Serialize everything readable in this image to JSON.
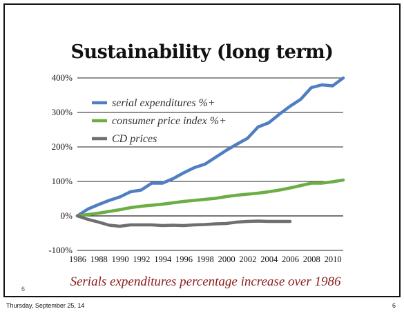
{
  "slide": {
    "title": "Sustainability (long term)",
    "caption": "Serials expenditures percentage increase over 1986",
    "slide_number_small": "6"
  },
  "footer": {
    "date": "Thursday, September 25, 14",
    "page_number": "6"
  },
  "chart_data": {
    "type": "line",
    "title": "",
    "xlabel": "",
    "ylabel": "",
    "grid": "horizontal",
    "legend_placement": "top-left",
    "xlim": [
      1986,
      2011
    ],
    "ylim": [
      -100,
      400
    ],
    "x_ticks": [
      "1986",
      "1988",
      "1990",
      "1992",
      "1994",
      "1996",
      "1998",
      "2000",
      "2002",
      "2004",
      "2006",
      "2008",
      "2010"
    ],
    "y_ticks": [
      {
        "value": 400,
        "label": "400%"
      },
      {
        "value": 300,
        "label": "300%"
      },
      {
        "value": 200,
        "label": "200%"
      },
      {
        "value": 100,
        "label": "100%"
      },
      {
        "value": 0,
        "label": "0%"
      },
      {
        "value": -100,
        "label": "-100%"
      }
    ],
    "series": [
      {
        "name": "serial expenditures %+",
        "color": "#4f7ec1",
        "x": [
          1986,
          1987,
          1988,
          1989,
          1990,
          1991,
          1992,
          1993,
          1994,
          1995,
          1996,
          1997,
          1998,
          1999,
          2000,
          2001,
          2002,
          2003,
          2004,
          2005,
          2006,
          2007,
          2008,
          2009,
          2010,
          2011
        ],
        "y": [
          0,
          20,
          33,
          45,
          55,
          70,
          75,
          95,
          95,
          108,
          125,
          140,
          150,
          170,
          190,
          208,
          225,
          258,
          270,
          295,
          318,
          338,
          372,
          380,
          377,
          400
        ]
      },
      {
        "name": "consumer price index %+",
        "color": "#6cae44",
        "x": [
          1986,
          1987,
          1988,
          1989,
          1990,
          1991,
          1992,
          1993,
          1994,
          1995,
          1996,
          1997,
          1998,
          1999,
          2000,
          2001,
          2002,
          2003,
          2004,
          2005,
          2006,
          2007,
          2008,
          2009,
          2010,
          2011
        ],
        "y": [
          0,
          4,
          8,
          13,
          18,
          24,
          28,
          31,
          34,
          38,
          42,
          45,
          48,
          51,
          56,
          60,
          63,
          66,
          70,
          75,
          81,
          88,
          95,
          95,
          99,
          104
        ]
      },
      {
        "name": "CD prices",
        "color": "#6f6f6f",
        "x": [
          1986,
          1987,
          1988,
          1989,
          1990,
          1991,
          1992,
          1993,
          1994,
          1995,
          1996,
          1997,
          1998,
          1999,
          2000,
          2001,
          2002,
          2003,
          2004,
          2005,
          2006
        ],
        "y": [
          0,
          -10,
          -18,
          -27,
          -30,
          -26,
          -26,
          -26,
          -28,
          -27,
          -28,
          -26,
          -25,
          -23,
          -22,
          -18,
          -16,
          -15,
          -16,
          -16,
          -16
        ]
      }
    ]
  }
}
